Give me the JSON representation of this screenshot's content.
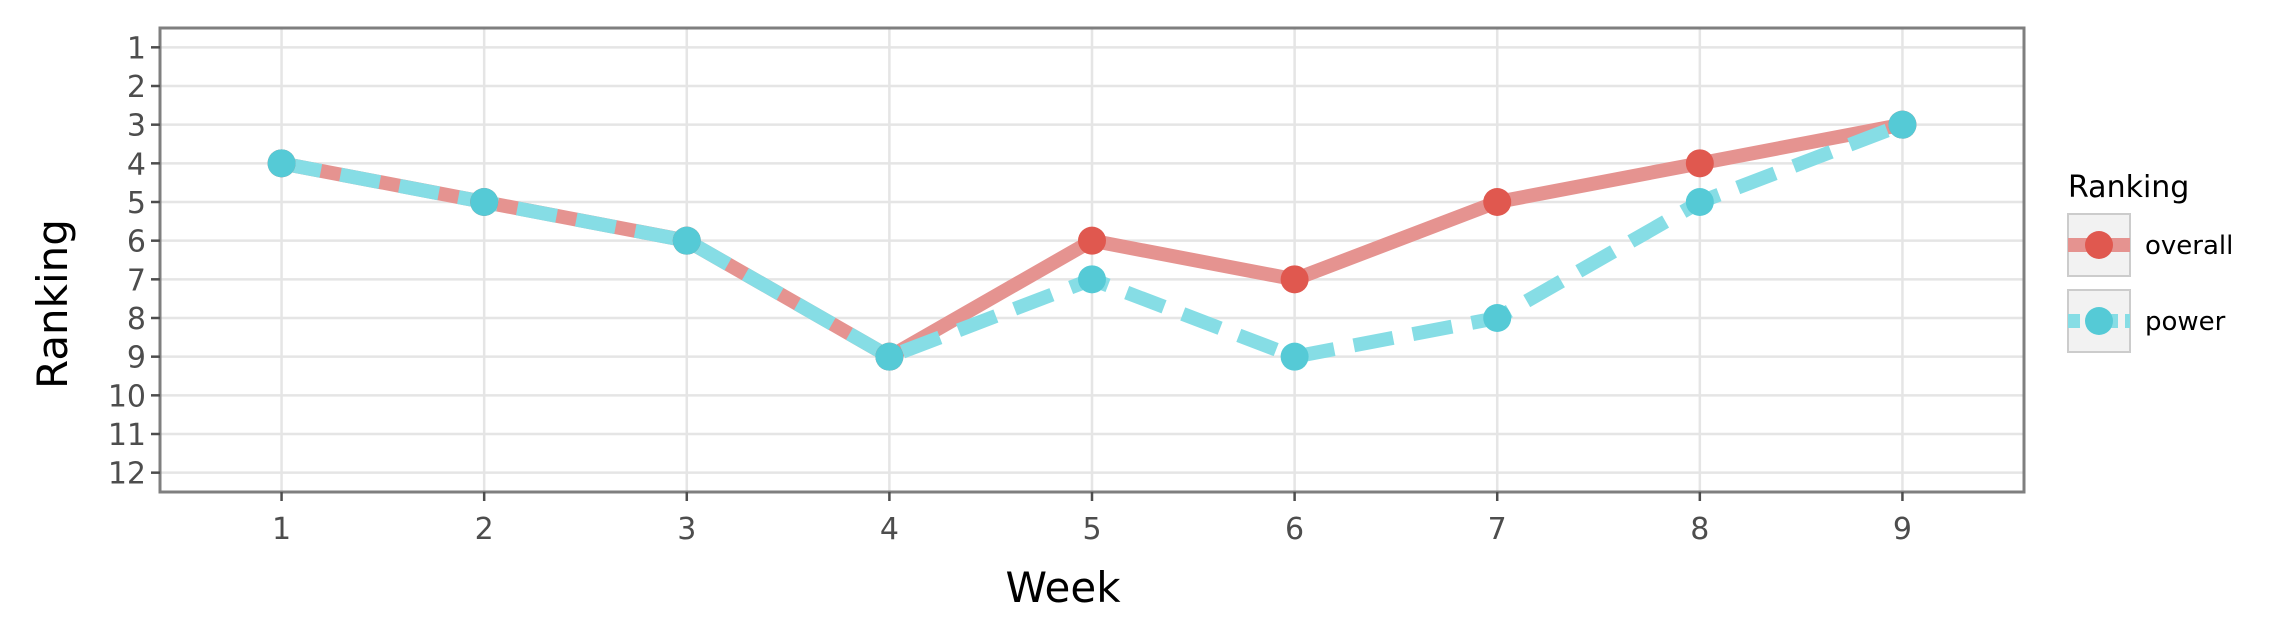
{
  "chart_data": {
    "type": "line",
    "xlabel": "Week",
    "ylabel": "Ranking",
    "x": [
      1,
      2,
      3,
      4,
      5,
      6,
      7,
      8,
      9
    ],
    "xlim": [
      0.4,
      9.6
    ],
    "ylim": [
      12.5,
      0.5
    ],
    "y_reversed": true,
    "x_ticks": [
      "1",
      "2",
      "3",
      "4",
      "5",
      "6",
      "7",
      "8",
      "9"
    ],
    "y_ticks": [
      "1",
      "2",
      "3",
      "4",
      "5",
      "6",
      "7",
      "8",
      "9",
      "10",
      "11",
      "12"
    ],
    "grid": true,
    "legend": {
      "title": "Ranking",
      "position": "right"
    },
    "series": [
      {
        "name": "overall",
        "values": [
          4,
          5,
          6,
          9,
          6,
          7,
          5,
          4,
          3
        ],
        "color": "#E0584F",
        "line_color": "#E59390",
        "dash": "solid"
      },
      {
        "name": "power",
        "values": [
          4,
          5,
          6,
          9,
          7,
          9,
          8,
          5,
          3
        ],
        "color": "#55CAD6",
        "line_color": "#86DDE5",
        "dash": "dashed"
      }
    ]
  }
}
